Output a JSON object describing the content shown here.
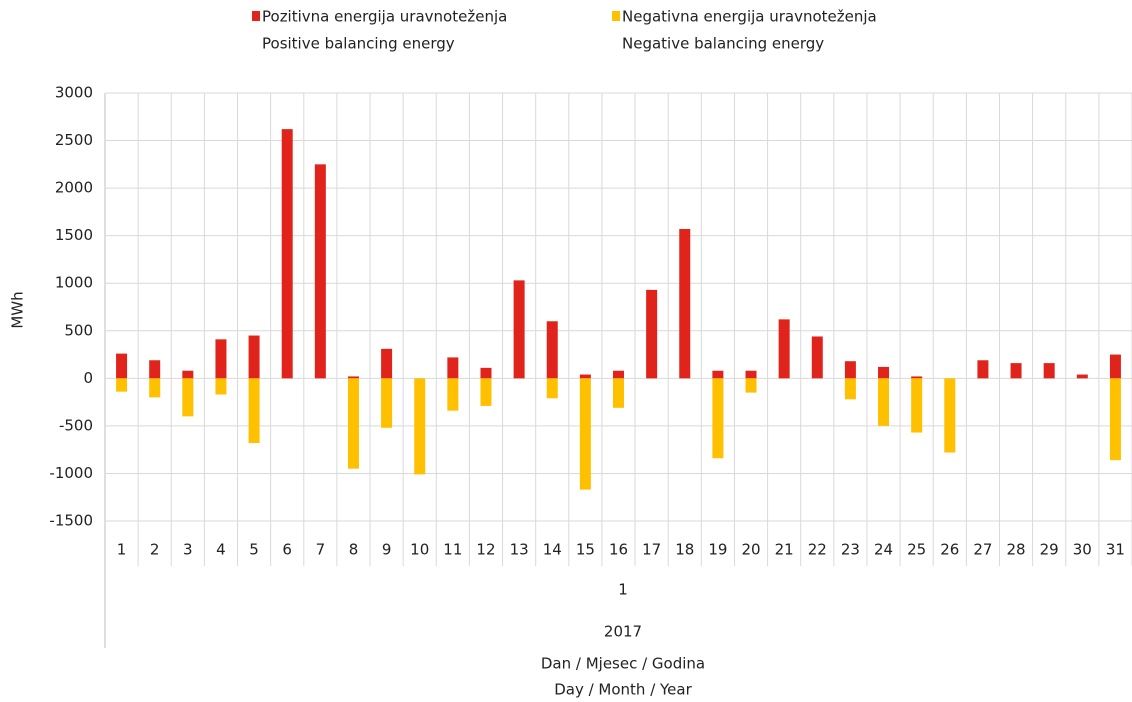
{
  "chart_data": {
    "type": "bar",
    "categories": [
      "1",
      "2",
      "3",
      "4",
      "5",
      "6",
      "7",
      "8",
      "9",
      "10",
      "11",
      "12",
      "13",
      "14",
      "15",
      "16",
      "17",
      "18",
      "19",
      "20",
      "21",
      "22",
      "23",
      "24",
      "25",
      "26",
      "27",
      "28",
      "29",
      "30",
      "31"
    ],
    "category_group_month": "1",
    "category_group_year": "2017",
    "x_label": "Dan / Mjesec / Godina",
    "x_label_en": "Day / Month / Year",
    "y_label": "MWh",
    "ylim": [
      -1500,
      3000
    ],
    "yticks": [
      -1500,
      -1000,
      -500,
      0,
      500,
      1000,
      1500,
      2000,
      2500,
      3000
    ],
    "grid": true,
    "legend_position": "top",
    "series": [
      {
        "name": "Pozitivna energija uravnoteženja",
        "name_en": "Positive balancing energy",
        "color": "#e0241b",
        "values": [
          260,
          190,
          80,
          410,
          450,
          2620,
          2250,
          20,
          310,
          0,
          220,
          110,
          1030,
          600,
          40,
          80,
          930,
          1570,
          80,
          80,
          620,
          440,
          180,
          120,
          20,
          0,
          190,
          160,
          160,
          40,
          250
        ]
      },
      {
        "name": "Negativna energija uravnoteženja",
        "name_en": "Negative balancing energy",
        "color": "#ffc000",
        "values": [
          -140,
          -200,
          -400,
          -170,
          -680,
          0,
          0,
          -950,
          -520,
          -1010,
          -340,
          -290,
          0,
          -210,
          -1170,
          -310,
          0,
          0,
          -840,
          -150,
          0,
          0,
          -220,
          -500,
          -570,
          -780,
          0,
          0,
          0,
          0,
          -860
        ]
      }
    ]
  }
}
